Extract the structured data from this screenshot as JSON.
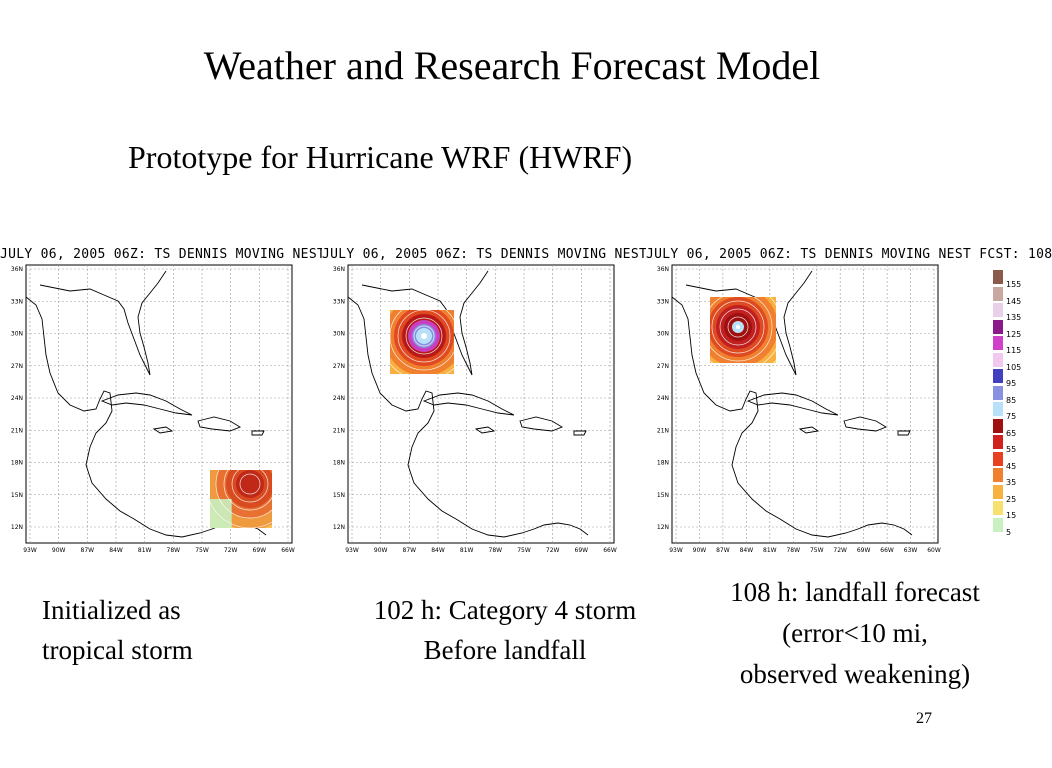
{
  "slide": {
    "title": "Weather and Research Forecast Model",
    "subtitle": "Prototype for Hurricane WRF (HWRF)",
    "page_number": "27"
  },
  "panels": [
    {
      "header": "JULY 06, 2005 06Z: TS DENNIS MOVING NEST",
      "caption_lines": [
        "Initialized as",
        "tropical storm"
      ]
    },
    {
      "header": "JULY 06, 2005 06Z: TS DENNIS MOVING NEST",
      "caption_lines": [
        "102 h: Category 4 storm",
        "Before landfall"
      ]
    },
    {
      "header": "JULY 06, 2005 06Z: TS DENNIS MOVING NEST FCST: 108",
      "caption_lines": [
        "108 h: landfall forecast",
        "(error<10 mi,",
        "observed weakening)"
      ]
    }
  ],
  "map_axes": {
    "lat_labels": [
      "36N",
      "33N",
      "30N",
      "27N",
      "24N",
      "21N",
      "18N",
      "15N",
      "12N"
    ],
    "lon_labels": [
      "93W",
      "90W",
      "87W",
      "84W",
      "81W",
      "78W",
      "75W",
      "72W",
      "69W",
      "66W",
      "63W",
      "60W"
    ]
  },
  "colorbar": {
    "labels": [
      "155",
      "145",
      "135",
      "125",
      "115",
      "105",
      "95",
      "85",
      "75",
      "65",
      "55",
      "45",
      "35",
      "25",
      "15",
      "5"
    ],
    "colors": [
      "#8a5a4a",
      "#c8a8a0",
      "#e8d0e8",
      "#8a1a8a",
      "#d040c8",
      "#f0c8f0",
      "#4040c0",
      "#8890e0",
      "#b8e0f8",
      "#a01010",
      "#d02020",
      "#e84020",
      "#f08030",
      "#f8b040",
      "#f8e070",
      "#c8f0c0"
    ]
  }
}
